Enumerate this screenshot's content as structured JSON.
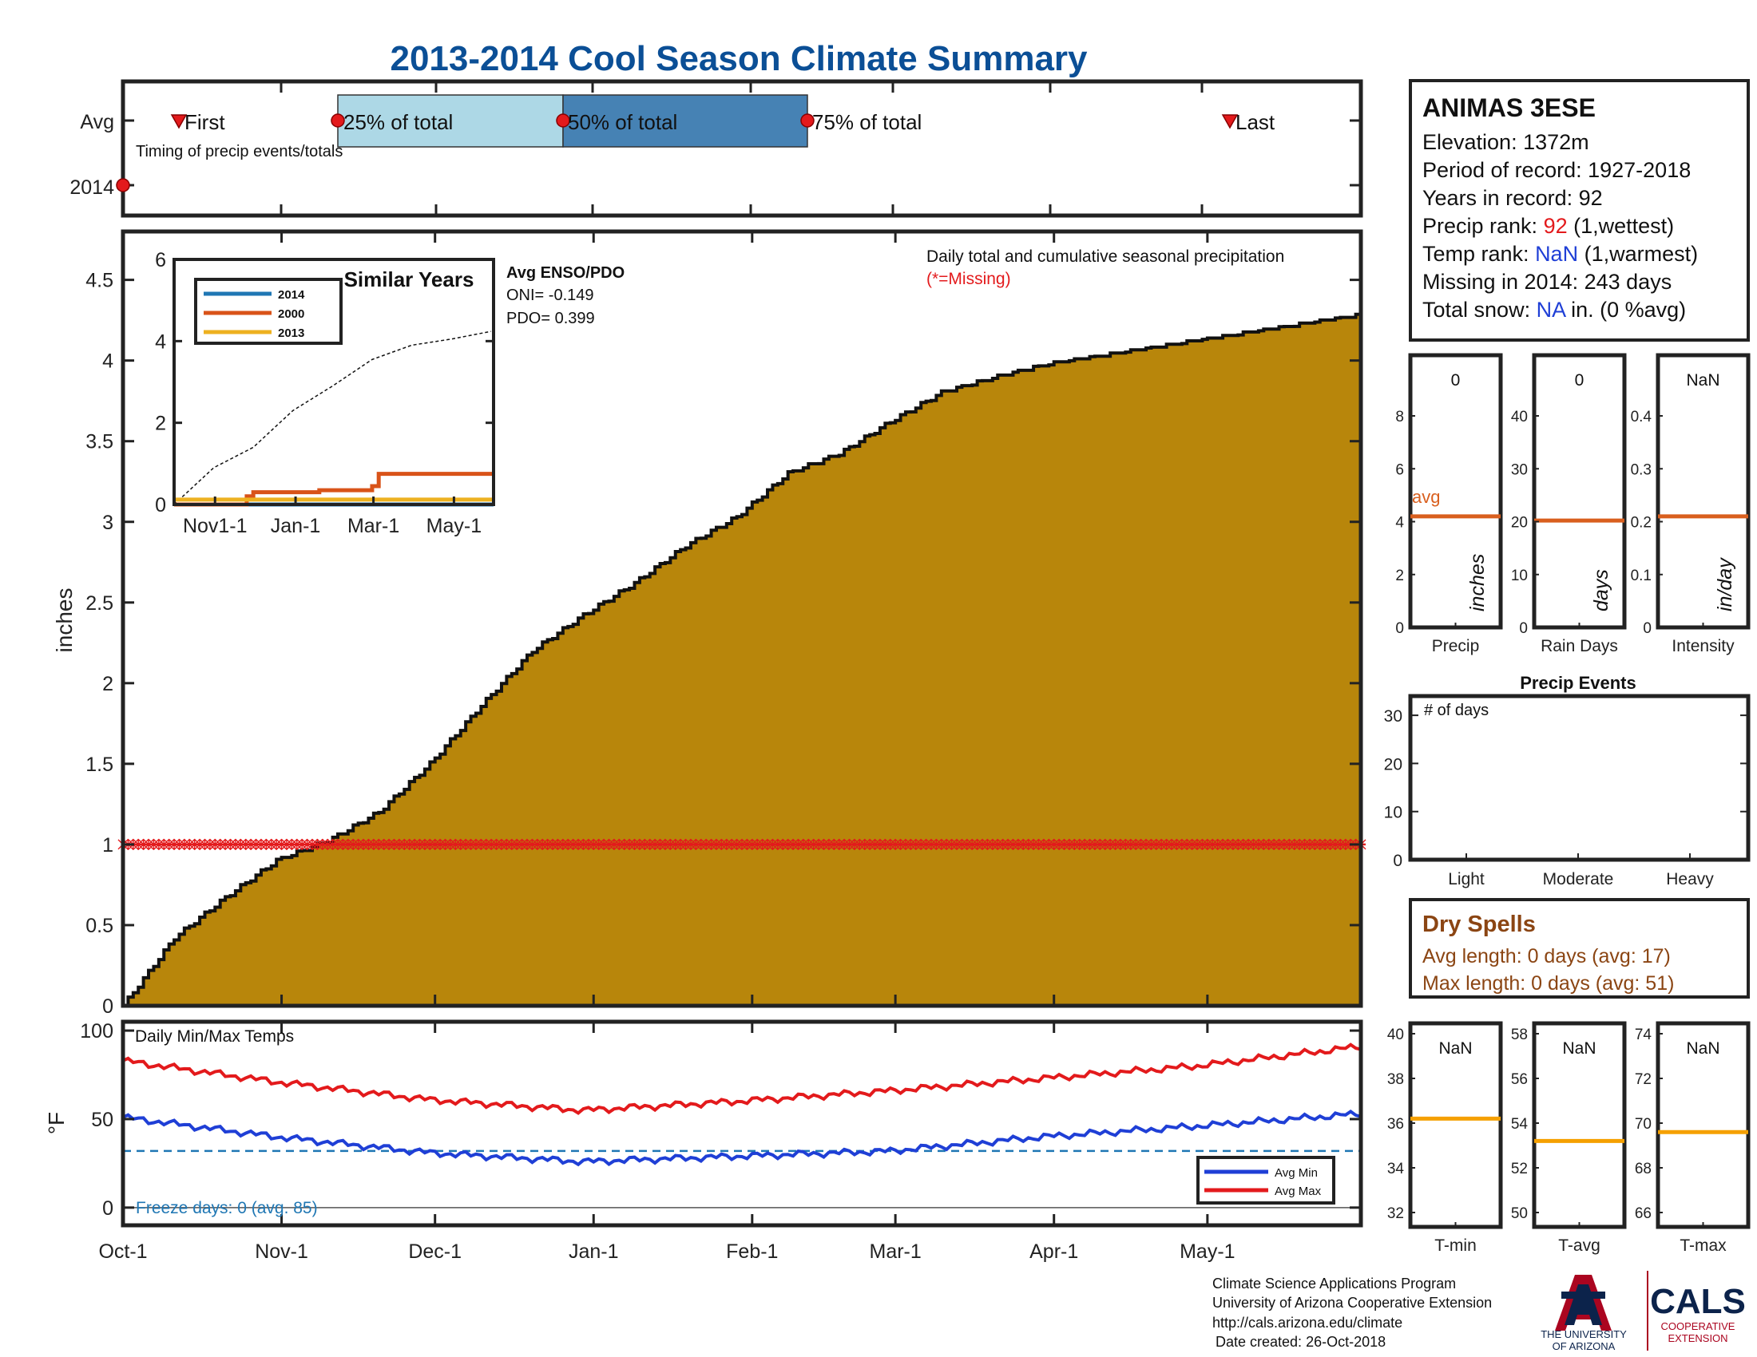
{
  "title": "2013-2014 Cool Season Climate Summary",
  "colors": {
    "title": "#0b4f96",
    "fill": "#b8860b",
    "cum_edge": "#111111",
    "red": "#e31a1c",
    "blue": "#1f3fd6",
    "freeze": "#1f77b4",
    "orange_avg": "#d95f1e",
    "gold_avg": "#f5a000",
    "dry": "#8b4513",
    "box_light": "#add8e6",
    "box_dark": "#4682b4"
  },
  "timing": {
    "row_avg": "Avg",
    "row_year": "2014",
    "first": "First",
    "last": "Last",
    "p25": "25% of total",
    "p50": "50% of total",
    "p75": "75% of total",
    "caption": "Timing of precip events/totals"
  },
  "station": {
    "name": "ANIMAS 3ESE",
    "elevation_label": "Elevation: ",
    "elevation": "1372m",
    "period_label": "Period of record: ",
    "period": "1927-2018",
    "years_label": "Years in record: ",
    "years": "92",
    "precip_rank_label": "Precip rank: ",
    "precip_rank": "92",
    "precip_rank_note": " (1,wettest)",
    "temp_rank_label": "Temp rank: ",
    "temp_rank": "NaN",
    "temp_rank_note": " (1,warmest)",
    "missing_label": "Missing in 2014: ",
    "missing": "243 days",
    "snow_label": "Total snow: ",
    "snow": "NA",
    "snow_note": " in. (0 %avg)"
  },
  "main": {
    "ylabel": "inches",
    "note1": "Daily total and cumulative seasonal precipitation",
    "note2": "(*=Missing)",
    "x_ticks": [
      "Oct-1",
      "Nov-1",
      "Dec-1",
      "Jan-1",
      "Feb-1",
      "Mar-1",
      "Apr-1",
      "May-1"
    ],
    "y_ticks": [
      "0",
      "0.5",
      "1",
      "1.5",
      "2",
      "2.5",
      "3",
      "3.5",
      "4",
      "4.5"
    ]
  },
  "inset": {
    "title": "Similar Years",
    "legend": [
      "2014",
      "2000",
      "2013"
    ],
    "x_ticks": [
      "Nov1-1",
      "Jan-1",
      "Mar-1",
      "May-1"
    ],
    "y_ticks": [
      "0",
      "2",
      "4",
      "6"
    ],
    "enso_title": "Avg ENSO/PDO",
    "oni": "ONI= -0.149",
    "pdo": "PDO= 0.399"
  },
  "bars_precip": {
    "labels": [
      "Precip",
      "Rain Days",
      "Intensity"
    ],
    "units": [
      "inches",
      "days",
      "in/day"
    ],
    "values": [
      "0",
      "0",
      "NaN"
    ],
    "avg_label": "avg",
    "y_ticks": [
      [
        "0",
        "2",
        "4",
        "6",
        "8"
      ],
      [
        "0",
        "10",
        "20",
        "30",
        "40"
      ],
      [
        "0",
        "0.1",
        "0.2",
        "0.3",
        "0.4"
      ]
    ],
    "avgs": [
      4.2,
      20.2,
      0.21
    ]
  },
  "events": {
    "title": "Precip Events",
    "ylabel": "# of days",
    "categories": [
      "Light",
      "Moderate",
      "Heavy"
    ],
    "y_ticks": [
      "0",
      "10",
      "20",
      "30"
    ]
  },
  "dry": {
    "title": "Dry Spells",
    "avg_length": "Avg length: 0 days (avg: 17)",
    "max_length": "Max length: 0 days (avg: 51)"
  },
  "temps": {
    "title": "Daily Min/Max Temps",
    "ylabel": "°F",
    "y_ticks": [
      "0",
      "50",
      "100"
    ],
    "freeze": "Freeze days: 0 (avg. 85)",
    "legend": [
      "Avg Min",
      "Avg Max"
    ]
  },
  "bars_temp": {
    "labels": [
      "T-min",
      "T-avg",
      "T-max"
    ],
    "values": [
      "NaN",
      "NaN",
      "NaN"
    ],
    "y_ticks": [
      [
        "32",
        "34",
        "36",
        "38",
        "40"
      ],
      [
        "50",
        "52",
        "54",
        "56",
        "58"
      ],
      [
        "66",
        "68",
        "70",
        "72",
        "74"
      ]
    ],
    "avgs": [
      36.2,
      53.2,
      69.6
    ]
  },
  "footer": {
    "line1": "Climate Science Applications Program",
    "line2": "University of Arizona Cooperative Extension",
    "line3": "http://cals.arizona.edu/climate",
    "line4": "Date created: 26-Oct-2018",
    "ua_line1": "THE UNIVERSITY",
    "ua_line2": "OF ARIZONA",
    "cals": "CALS",
    "cals_sub1": "COOPERATIVE",
    "cals_sub2": "EXTENSION"
  },
  "chart_data": {
    "type": "area",
    "title": "2013-2014 Cool Season Climate Summary",
    "ylabel": "inches",
    "ylim": [
      0,
      4.8
    ],
    "x_ticks": [
      "Oct-1",
      "Nov-1",
      "Dec-1",
      "Jan-1",
      "Feb-1",
      "Mar-1",
      "Apr-1",
      "May-1"
    ],
    "x_days": [
      0,
      31,
      61,
      92,
      123,
      151,
      182,
      212
    ],
    "cumulative_precip_inches": {
      "x": [
        0,
        10,
        20,
        30,
        40,
        50,
        60,
        70,
        80,
        90,
        100,
        110,
        120,
        130,
        140,
        150,
        160,
        170,
        180,
        190,
        200,
        210,
        220,
        230,
        242
      ],
      "y": [
        0.0,
        0.42,
        0.67,
        0.9,
        1.02,
        1.2,
        1.5,
        1.86,
        2.2,
        2.42,
        2.62,
        2.85,
        3.03,
        3.3,
        3.42,
        3.62,
        3.8,
        3.89,
        3.97,
        4.02,
        4.07,
        4.12,
        4.17,
        4.22,
        4.28
      ]
    },
    "missing_marker_y": 1,
    "temperatures_F": {
      "x": [
        0,
        30,
        60,
        90,
        120,
        150,
        180,
        210,
        242
      ],
      "series": [
        {
          "name": "Avg Max",
          "values": [
            83,
            71,
            61,
            55,
            60,
            66,
            73,
            80,
            91
          ]
        },
        {
          "name": "Avg Min",
          "values": [
            51,
            40,
            31,
            26,
            29,
            32,
            40,
            46,
            53
          ]
        }
      ],
      "freeze_line": 32,
      "ylim": [
        -10,
        105
      ]
    },
    "inset_similar_years": {
      "xlim": [
        0,
        242
      ],
      "ylim": [
        0,
        6
      ],
      "avg_x": [
        0,
        30,
        60,
        90,
        120,
        150,
        180,
        210,
        242
      ],
      "avg_y": [
        0.0,
        0.9,
        1.4,
        2.3,
        2.9,
        3.55,
        3.9,
        4.05,
        4.25
      ],
      "series": [
        {
          "name": "2014",
          "x": [
            0,
            242
          ],
          "y": [
            0.0,
            0.0
          ]
        },
        {
          "name": "2000",
          "x": [
            0,
            55,
            55,
            60,
            60,
            110,
            110,
            150,
            150,
            155,
            155,
            242
          ],
          "y": [
            0.0,
            0.0,
            0.2,
            0.2,
            0.3,
            0.3,
            0.35,
            0.35,
            0.45,
            0.45,
            0.75,
            0.75
          ]
        },
        {
          "name": "2013",
          "x": [
            0,
            242
          ],
          "y": [
            0.12,
            0.12
          ]
        }
      ]
    }
  }
}
